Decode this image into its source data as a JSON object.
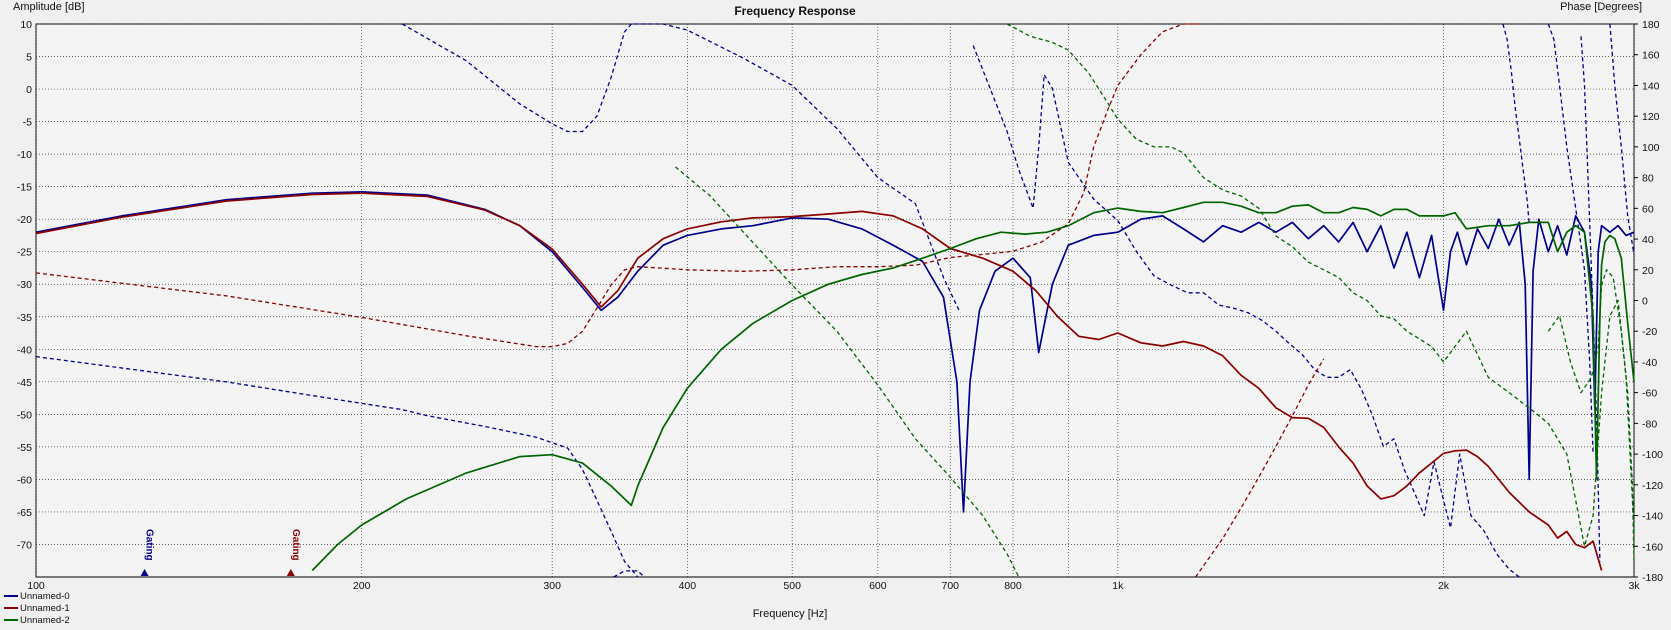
{
  "chart_data": {
    "type": "line",
    "title": "Frequency Response",
    "xlabel": "Frequency [Hz]",
    "ylabel": "Amplitude [dB]",
    "y2label": "Phase [Degrees]",
    "x_scale": "log",
    "xlim": [
      100,
      3000
    ],
    "ylim": [
      -75,
      10
    ],
    "y2lim": [
      -180,
      180
    ],
    "grid": true,
    "legend_position": "bottom-left",
    "x_ticks": [
      {
        "value": 100,
        "label": "100"
      },
      {
        "value": 200,
        "label": "200"
      },
      {
        "value": 300,
        "label": "300"
      },
      {
        "value": 400,
        "label": "400"
      },
      {
        "value": 500,
        "label": "500"
      },
      {
        "value": 600,
        "label": "600"
      },
      {
        "value": 700,
        "label": "700"
      },
      {
        "value": 800,
        "label": "800"
      },
      {
        "value": 1000,
        "label": "1k"
      },
      {
        "value": 2000,
        "label": "2k"
      },
      {
        "value": 3000,
        "label": "3k"
      }
    ],
    "x_minor_grid": [
      900
    ],
    "y_ticks": [
      10,
      5,
      0,
      -5,
      -10,
      -15,
      -20,
      -25,
      -30,
      -35,
      -40,
      -45,
      -50,
      -55,
      -60,
      -65,
      -70
    ],
    "y2_ticks": [
      180,
      160,
      140,
      120,
      100,
      80,
      60,
      40,
      20,
      0,
      -20,
      -40,
      -60,
      -80,
      -100,
      -120,
      -140,
      -160,
      -180
    ],
    "gating_markers": [
      {
        "label": "Gating",
        "x": 126,
        "color": "#00008b"
      },
      {
        "label": "Gating",
        "x": 172,
        "color": "#8b0000"
      }
    ],
    "series": [
      {
        "name": "Unnamed-0",
        "color": "#00008b",
        "kind": "amplitude",
        "x": [
          100,
          120,
          150,
          180,
          200,
          230,
          260,
          280,
          300,
          320,
          333,
          345,
          360,
          380,
          400,
          430,
          460,
          500,
          540,
          580,
          620,
          660,
          690,
          710,
          720,
          730,
          745,
          770,
          800,
          830,
          845,
          870,
          900,
          950,
          1000,
          1050,
          1100,
          1150,
          1200,
          1250,
          1300,
          1350,
          1400,
          1450,
          1500,
          1550,
          1600,
          1650,
          1700,
          1750,
          1800,
          1850,
          1900,
          1950,
          2000,
          2030,
          2060,
          2100,
          2150,
          2200,
          2250,
          2300,
          2350,
          2380,
          2400,
          2420,
          2450,
          2500,
          2550,
          2600,
          2650,
          2700,
          2740,
          2760,
          2780,
          2800,
          2850,
          2900,
          2950,
          3000
        ],
        "y": [
          -22,
          -19.5,
          -17,
          -16,
          -15.8,
          -16.3,
          -18.5,
          -21,
          -25,
          -30.5,
          -34,
          -32,
          -28,
          -24,
          -22.5,
          -21.5,
          -21,
          -19.8,
          -20,
          -21.5,
          -24,
          -26.5,
          -32,
          -45,
          -65,
          -45,
          -34,
          -28,
          -26,
          -29,
          -40.5,
          -30,
          -24,
          -22.5,
          -22,
          -20,
          -19.5,
          -21.5,
          -23.5,
          -21,
          -22,
          -20.5,
          -22,
          -20.5,
          -23,
          -21,
          -23.5,
          -20.5,
          -25,
          -21,
          -27.5,
          -22,
          -29,
          -22.5,
          -34,
          -25,
          -22,
          -27,
          -21.5,
          -24.5,
          -20,
          -24,
          -20.5,
          -30,
          -60,
          -28,
          -20,
          -25,
          -21,
          -25.5,
          -19.5,
          -22,
          -30,
          -49,
          -25,
          -21,
          -22,
          -21,
          -22.5,
          -22
        ]
      },
      {
        "name": "Unnamed-0",
        "color": "#00008b",
        "kind": "phase",
        "x": [
          100,
          150,
          200,
          218,
          230,
          260,
          290,
          310,
          320,
          330,
          340,
          350,
          360
        ],
        "y": [
          -36.5,
          -53,
          -67,
          -71,
          -75,
          -82,
          -89,
          -96,
          -110,
          -130,
          -150,
          -170,
          -182
        ]
      },
      {
        "name": "Unnamed-0",
        "color": "#00008b",
        "kind": "phase",
        "x": [
          218,
          250,
          280,
          300,
          310,
          320,
          330,
          340,
          345,
          350,
          355,
          360,
          380,
          400,
          450,
          500,
          550,
          600,
          650,
          690,
          715
        ],
        "y": [
          183,
          156,
          128,
          115,
          110,
          110,
          120,
          145,
          160,
          175,
          183,
          188,
          185,
          176,
          158,
          140,
          112,
          80,
          63,
          15,
          -8
        ]
      },
      {
        "name": "Unnamed-0",
        "color": "#00008b",
        "kind": "phase",
        "x": [
          342,
          350,
          360,
          365
        ],
        "y": [
          -180,
          -176,
          -176,
          -180
        ]
      },
      {
        "name": "Unnamed-0",
        "color": "#00008b",
        "kind": "phase",
        "x": [
          735,
          760,
          790,
          810,
          825,
          835,
          845,
          855,
          870,
          900,
          950,
          1000,
          1040,
          1080,
          1120,
          1160,
          1200,
          1240,
          1280,
          1320,
          1360,
          1400,
          1440,
          1480,
          1520,
          1560,
          1600,
          1640,
          1680,
          1720,
          1760,
          1800,
          1840,
          1880,
          1920,
          1960,
          2000,
          2030,
          2070,
          2120,
          2180,
          2240,
          2300,
          2350
        ],
        "y": [
          166,
          140,
          110,
          85,
          70,
          60,
          100,
          147,
          138,
          90,
          66,
          52,
          32,
          16,
          10,
          5,
          5,
          -3,
          -5,
          -8,
          -13,
          -20,
          -28,
          -35,
          -45,
          -50,
          -50,
          -45,
          -58,
          -75,
          -95,
          -90,
          -110,
          -125,
          -140,
          -105,
          -130,
          -148,
          -100,
          -140,
          -150,
          -165,
          -175,
          -182
        ]
      },
      {
        "name": "Unnamed-0",
        "color": "#00008b",
        "kind": "phase",
        "x": [
          2270,
          2290,
          2310,
          2330,
          2350,
          2370,
          2390,
          2400
        ],
        "y": [
          188,
          170,
          150,
          125,
          105,
          85,
          65,
          50
        ]
      },
      {
        "name": "Unnamed-0",
        "color": "#00008b",
        "kind": "phase",
        "x": [
          2500,
          2530,
          2560,
          2600,
          2650,
          2700,
          2730,
          2750
        ],
        "y": [
          188,
          170,
          140,
          100,
          60,
          20,
          -40,
          -100
        ]
      },
      {
        "name": "Unnamed-0",
        "color": "#00008b",
        "kind": "phase",
        "x": [
          2680,
          2700,
          2720,
          2740,
          2760,
          2775,
          2790
        ],
        "y": [
          172,
          140,
          80,
          20,
          -40,
          -100,
          -170
        ]
      },
      {
        "name": "Unnamed-0",
        "color": "#00008b",
        "kind": "phase",
        "x": [
          2850,
          2880,
          2920,
          2960,
          3000
        ],
        "y": [
          180,
          140,
          100,
          55,
          30
        ]
      },
      {
        "name": "Unnamed-1",
        "color": "#8b0000",
        "kind": "amplitude",
        "x": [
          100,
          120,
          150,
          180,
          200,
          230,
          260,
          280,
          300,
          320,
          333,
          345,
          360,
          380,
          400,
          430,
          460,
          500,
          540,
          580,
          620,
          660,
          700,
          750,
          800,
          840,
          880,
          920,
          960,
          1000,
          1050,
          1100,
          1150,
          1200,
          1250,
          1300,
          1350,
          1400,
          1450,
          1500,
          1550,
          1600,
          1650,
          1700,
          1750,
          1800,
          1850,
          1900,
          1950,
          2000,
          2050,
          2100,
          2150,
          2200,
          2300,
          2400,
          2500,
          2550,
          2600,
          2650,
          2700,
          2750,
          2800
        ],
        "y": [
          -22.2,
          -19.7,
          -17.2,
          -16.2,
          -16,
          -16.5,
          -18.6,
          -21,
          -24.6,
          -30,
          -33.5,
          -31,
          -26,
          -23,
          -21.5,
          -20.4,
          -19.8,
          -19.6,
          -19.2,
          -18.8,
          -19.5,
          -21.5,
          -24.5,
          -26,
          -28,
          -31,
          -35,
          -38,
          -38.5,
          -37.5,
          -39,
          -39.5,
          -38.8,
          -39.5,
          -41,
          -44,
          -46,
          -49,
          -50.5,
          -50.6,
          -52,
          -55,
          -57.5,
          -61,
          -63,
          -62.5,
          -61,
          -59,
          -57.5,
          -56,
          -55.6,
          -55.5,
          -56.5,
          -58,
          -62,
          -65,
          -67,
          -69,
          -68,
          -70,
          -70.5,
          -69.5,
          -74
        ]
      },
      {
        "name": "Unnamed-1",
        "color": "#8b0000",
        "kind": "phase",
        "x": [
          100,
          150,
          200,
          250,
          290,
          300,
          310,
          320,
          330,
          340,
          350,
          360,
          380,
          400,
          450,
          500,
          550,
          600,
          650,
          700,
          750,
          800,
          850,
          900,
          930,
          950,
          980,
          1000,
          1050,
          1100,
          1150,
          1200
        ],
        "y": [
          18,
          3,
          -11,
          -23,
          -30,
          -30,
          -28,
          -20,
          -5,
          10,
          20,
          22,
          21,
          20,
          19,
          20,
          22,
          22,
          23,
          28,
          30,
          32,
          38,
          50,
          70,
          100,
          125,
          140,
          160,
          175,
          182,
          186
        ]
      },
      {
        "name": "Unnamed-1",
        "color": "#8b0000",
        "kind": "phase",
        "x": [
          1180,
          1250,
          1300,
          1350,
          1400,
          1450,
          1500,
          1550
        ],
        "y": [
          -182,
          -155,
          -135,
          -115,
          -95,
          -75,
          -55,
          -38
        ]
      },
      {
        "name": "Unnamed-2",
        "color": "#006400",
        "kind": "amplitude",
        "x": [
          180,
          190,
          200,
          220,
          250,
          280,
          300,
          320,
          340,
          350,
          355,
          360,
          380,
          400,
          430,
          460,
          500,
          540,
          580,
          620,
          660,
          700,
          740,
          780,
          820,
          860,
          900,
          950,
          1000,
          1050,
          1100,
          1150,
          1200,
          1250,
          1300,
          1350,
          1400,
          1450,
          1500,
          1550,
          1600,
          1650,
          1700,
          1750,
          1800,
          1850,
          1900,
          1950,
          2000,
          2050,
          2100,
          2200,
          2300,
          2400,
          2500,
          2550,
          2600,
          2650,
          2700,
          2750,
          2770,
          2790,
          2800,
          2820,
          2850,
          2880,
          2920,
          2960,
          3000
        ],
        "y": [
          -74,
          -70,
          -67,
          -63,
          -59,
          -56.5,
          -56.2,
          -57.5,
          -61,
          -63,
          -64,
          -61,
          -52,
          -46,
          -40,
          -36,
          -32.5,
          -30,
          -28.5,
          -27.5,
          -26,
          -24.5,
          -23,
          -22,
          -22.3,
          -22,
          -21,
          -19,
          -18.3,
          -18.8,
          -19,
          -18.2,
          -17.4,
          -17.4,
          -18,
          -19,
          -19,
          -18,
          -17.8,
          -19,
          -19,
          -18.2,
          -18.5,
          -19.5,
          -18.5,
          -18.5,
          -19.5,
          -19.5,
          -19.5,
          -19,
          -21.5,
          -21,
          -21,
          -20.5,
          -20.5,
          -25,
          -22,
          -21,
          -22,
          -35,
          -60,
          -35,
          -27,
          -23.5,
          -22.5,
          -23,
          -26,
          -36,
          -45
        ]
      },
      {
        "name": "Unnamed-2",
        "color": "#006400",
        "kind": "phase",
        "x": [
          390,
          420,
          450,
          500,
          550,
          600,
          650,
          700,
          750,
          790,
          810
        ],
        "y": [
          87,
          68,
          45,
          10,
          -20,
          -55,
          -90,
          -115,
          -140,
          -165,
          -180
        ]
      },
      {
        "name": "Unnamed-2",
        "color": "#006400",
        "kind": "phase",
        "x": [
          790,
          830,
          870,
          900,
          940,
          980,
          1000,
          1040,
          1080,
          1120,
          1150,
          1200,
          1250,
          1300,
          1350,
          1400,
          1450,
          1500,
          1550,
          1600,
          1650,
          1700,
          1750,
          1800,
          1850,
          1900,
          1950,
          2000,
          2100,
          2200,
          2300,
          2400,
          2500,
          2600,
          2650,
          2700,
          2750,
          2800,
          2850,
          2900,
          2950,
          3000
        ],
        "y": [
          190,
          172,
          168,
          163,
          148,
          128,
          118,
          105,
          100,
          100,
          96,
          80,
          72,
          68,
          60,
          42,
          35,
          25,
          20,
          15,
          5,
          0,
          -10,
          -12,
          -20,
          -25,
          -30,
          -40,
          -20,
          -50,
          -60,
          -70,
          -80,
          -100,
          -130,
          -160,
          -140,
          -60,
          -10,
          0,
          -50,
          -150
        ]
      },
      {
        "name": "Unnamed-2",
        "color": "#006400",
        "kind": "phase",
        "x": [
          2500,
          2560,
          2620,
          2680,
          2740,
          2780,
          2800,
          2830,
          2870,
          2920,
          2960,
          2990,
          3000
        ],
        "y": [
          -20,
          -10,
          -40,
          -60,
          -50,
          -30,
          10,
          20,
          15,
          -20,
          -60,
          -120,
          -170
        ]
      }
    ],
    "legend": [
      {
        "name": "Unnamed-0",
        "color": "#00008b"
      },
      {
        "name": "Unnamed-1",
        "color": "#8b0000"
      },
      {
        "name": "Unnamed-2",
        "color": "#006400"
      }
    ]
  }
}
